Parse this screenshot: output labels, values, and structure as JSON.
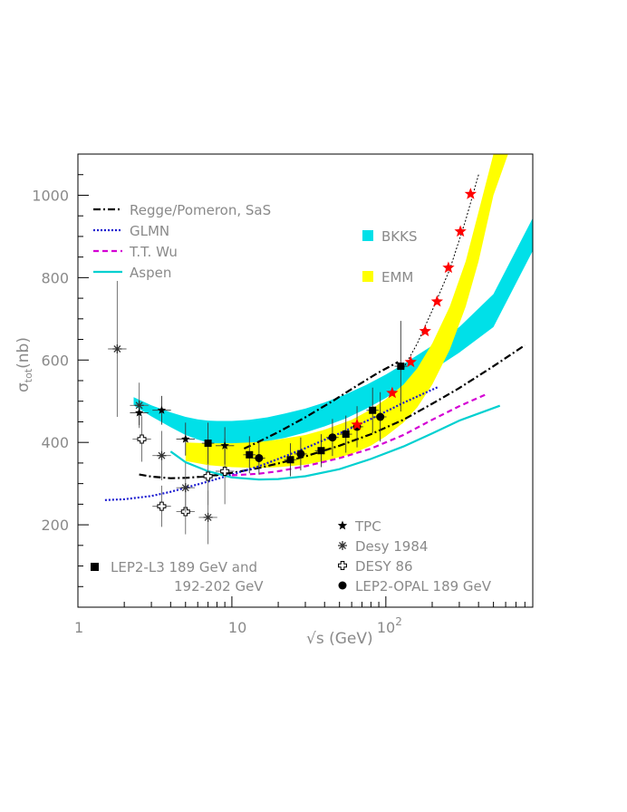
{
  "chart_data": {
    "type": "scatter",
    "title": "",
    "xlabel": "√s (GeV)",
    "ylabel_main": "σ",
    "ylabel_sub": "tot",
    "ylabel_unit": "(nb)",
    "x_scale": "log",
    "xlim": [
      1,
      900
    ],
    "ylim": [
      0,
      1100
    ],
    "y_ticks": [
      200,
      400,
      600,
      800,
      1000
    ],
    "x_tick_labels": [
      {
        "value": 1,
        "label": "1",
        "sup": ""
      },
      {
        "value": 10,
        "label": "10",
        "sup": ""
      },
      {
        "value": 100,
        "label": "10",
        "sup": "2"
      }
    ],
    "grid": false,
    "legend_lines": [
      {
        "label": "Regge/Pomeron, SaS",
        "color": "#000000",
        "dash": "8,3,2,3"
      },
      {
        "label": "GLMN",
        "color": "#1a1ad0",
        "dash": "2,2"
      },
      {
        "label": "T.T. Wu",
        "color": "#d400d4",
        "dash": "6,4"
      },
      {
        "label": "Aspen",
        "color": "#00d0d0",
        "dash": ""
      }
    ],
    "legend_bands": [
      {
        "label": "BKKS",
        "color": "#00e0e8"
      },
      {
        "label": "EMM",
        "color": "#ffff00"
      }
    ],
    "legend_markers": [
      {
        "label": "TPC",
        "marker": "star"
      },
      {
        "label": "Desy 1984",
        "marker": "asterisk"
      },
      {
        "label": "DESY 86",
        "marker": "open-cross"
      },
      {
        "label": "LEP2-OPAL 189 GeV",
        "marker": "circle"
      }
    ],
    "legend_l3": {
      "label_line1": "LEP2-L3 189 GeV and",
      "label_line2": "192-202 GeV",
      "marker": "square"
    },
    "bands": [
      {
        "name": "BKKS",
        "color": "#00e0e8",
        "x": [
          2.3,
          3,
          4,
          5,
          6,
          7,
          8,
          10,
          13,
          17,
          22,
          30,
          40,
          55,
          75,
          100,
          130,
          150,
          200,
          300,
          500,
          900
        ],
        "upper": [
          510,
          490,
          473,
          462,
          456,
          453,
          452,
          452,
          455,
          461,
          470,
          482,
          497,
          517,
          540,
          565,
          590,
          605,
          635,
          680,
          760,
          945
        ],
        "lower": [
          490,
          463,
          437,
          418,
          407,
          400,
          396,
          394,
          397,
          403,
          411,
          424,
          439,
          458,
          482,
          508,
          535,
          550,
          575,
          618,
          680,
          865
        ]
      },
      {
        "name": "EMM",
        "color": "#ffff00",
        "x": [
          5,
          7,
          10,
          15,
          20,
          30,
          40,
          60,
          80,
          100,
          130,
          160,
          200,
          260,
          330,
          400,
          500,
          650,
          800
        ],
        "upper": [
          400,
          398,
          398,
          401,
          407,
          418,
          431,
          455,
          480,
          505,
          540,
          580,
          640,
          730,
          840,
          960,
          1100,
          1120,
          1120
        ],
        "lower": [
          355,
          345,
          340,
          338,
          340,
          346,
          355,
          372,
          392,
          415,
          448,
          485,
          540,
          625,
          730,
          840,
          1000,
          1120,
          1120
        ]
      }
    ],
    "series": [
      {
        "name": "Regge/Pomeron, SaS",
        "color": "#000000",
        "dash": "8,3,2,3",
        "x": [
          2.5,
          3,
          4,
          5,
          7,
          10,
          15,
          20,
          30,
          50,
          80,
          130,
          200,
          300,
          500,
          800
        ],
        "y": [
          322,
          317,
          313,
          314,
          318,
          326,
          338,
          349,
          366,
          392,
          420,
          455,
          494,
          532,
          585,
          636
        ]
      },
      {
        "name": "Regge/Pomeron, SaS",
        "color": "#000000",
        "dash": "8,3,2,3",
        "x": [
          12,
          15,
          20,
          30,
          45,
          65,
          90,
          120
        ],
        "y": [
          385,
          402,
          425,
          461,
          500,
          538,
          570,
          595
        ]
      },
      {
        "name": "Regge/Pomeron, SaS",
        "color": "#000000",
        "dash": "2,2",
        "x": [
          130,
          160,
          200,
          260,
          330,
          400
        ],
        "y": [
          580,
          640,
          720,
          820,
          940,
          1050
        ]
      },
      {
        "name": "GLMN",
        "color": "#1a1ad0",
        "dash": "2,2",
        "x": [
          1.5,
          2,
          3,
          4,
          5,
          7,
          10,
          15,
          20,
          30,
          50,
          80,
          130,
          220
        ],
        "y": [
          260,
          262,
          270,
          280,
          290,
          305,
          322,
          342,
          360,
          386,
          422,
          457,
          496,
          535
        ]
      },
      {
        "name": "T.T. Wu",
        "color": "#d400d4",
        "dash": "6,4",
        "x": [
          10,
          15,
          20,
          30,
          50,
          80,
          130,
          200,
          300,
          450
        ],
        "y": [
          320,
          324,
          330,
          342,
          362,
          385,
          418,
          455,
          488,
          517
        ]
      },
      {
        "name": "Aspen",
        "color": "#00d0d0",
        "dash": "",
        "x": [
          4,
          5,
          7,
          10,
          15,
          20,
          30,
          50,
          80,
          130,
          200,
          300,
          550
        ],
        "y": [
          378,
          352,
          330,
          315,
          310,
          311,
          318,
          335,
          360,
          390,
          422,
          453,
          489
        ]
      }
    ],
    "points": [
      {
        "set": "DESY 86",
        "marker": "open-cross",
        "x": 2.6,
        "y": 408,
        "yerr": 55
      },
      {
        "set": "DESY 86",
        "marker": "open-cross",
        "x": 3.5,
        "y": 245,
        "yerr": 50
      },
      {
        "set": "DESY 86",
        "marker": "open-cross",
        "x": 5,
        "y": 232,
        "yerr": 55
      },
      {
        "set": "DESY 86",
        "marker": "open-cross",
        "x": 7,
        "y": 318,
        "yerr": 70
      },
      {
        "set": "DESY 86",
        "marker": "open-cross",
        "x": 9,
        "y": 330,
        "yerr": 80
      },
      {
        "set": "Desy 1984",
        "marker": "asterisk",
        "x": 1.8,
        "y": 627,
        "yerr": 165
      },
      {
        "set": "Desy 1984",
        "marker": "asterisk",
        "x": 2.5,
        "y": 490,
        "yerr": 55
      },
      {
        "set": "Desy 1984",
        "marker": "asterisk",
        "x": 3.5,
        "y": 368,
        "yerr": 60
      },
      {
        "set": "Desy 1984",
        "marker": "asterisk",
        "x": 5,
        "y": 290,
        "yerr": 60
      },
      {
        "set": "Desy 1984",
        "marker": "asterisk",
        "x": 7,
        "y": 218,
        "yerr": 65
      },
      {
        "set": "TPC",
        "marker": "star",
        "x": 2.5,
        "y": 472,
        "yerr": 30
      },
      {
        "set": "TPC",
        "marker": "star",
        "x": 3.5,
        "y": 478,
        "yerr": 35
      },
      {
        "set": "TPC",
        "marker": "star",
        "x": 5,
        "y": 408,
        "yerr": 40
      },
      {
        "set": "TPC",
        "marker": "star",
        "x": 9,
        "y": 392,
        "yerr": 45
      },
      {
        "set": "LEP2-L3 189 GeV and 192-202 GeV",
        "marker": "square",
        "x": 7,
        "y": 398,
        "yerr": 50
      },
      {
        "set": "LEP2-L3 189 GeV and 192-202 GeV",
        "marker": "square",
        "x": 13,
        "y": 370,
        "yerr": 45
      },
      {
        "set": "LEP2-L3 189 GeV and 192-202 GeV",
        "marker": "square",
        "x": 24,
        "y": 358,
        "yerr": 40
      },
      {
        "set": "LEP2-L3 189 GeV and 192-202 GeV",
        "marker": "square",
        "x": 38,
        "y": 380,
        "yerr": 40
      },
      {
        "set": "LEP2-L3 189 GeV and 192-202 GeV",
        "marker": "square",
        "x": 55,
        "y": 420,
        "yerr": 45
      },
      {
        "set": "LEP2-L3 189 GeV and 192-202 GeV",
        "marker": "square",
        "x": 82,
        "y": 478,
        "yerr": 55
      },
      {
        "set": "LEP2-L3 189 GeV and 192-202 GeV",
        "marker": "square",
        "x": 125,
        "y": 585,
        "yerr": 110
      },
      {
        "set": "LEP2-OPAL 189 GeV",
        "marker": "circle",
        "x": 15,
        "y": 362,
        "yerr": 40
      },
      {
        "set": "LEP2-OPAL 189 GeV",
        "marker": "circle",
        "x": 28,
        "y": 372,
        "yerr": 40
      },
      {
        "set": "LEP2-OPAL 189 GeV",
        "marker": "circle",
        "x": 45,
        "y": 412,
        "yerr": 45
      },
      {
        "set": "LEP2-OPAL 189 GeV",
        "marker": "circle",
        "x": 65,
        "y": 438,
        "yerr": 50
      },
      {
        "set": "LEP2-OPAL 189 GeV",
        "marker": "circle",
        "x": 92,
        "y": 462,
        "yerr": 60
      }
    ],
    "red_stars": {
      "color": "#ff0000",
      "x": [
        65,
        110,
        145,
        180,
        215,
        255,
        305,
        355
      ],
      "y": [
        443,
        520,
        595,
        670,
        742,
        824,
        912,
        1003
      ]
    }
  }
}
